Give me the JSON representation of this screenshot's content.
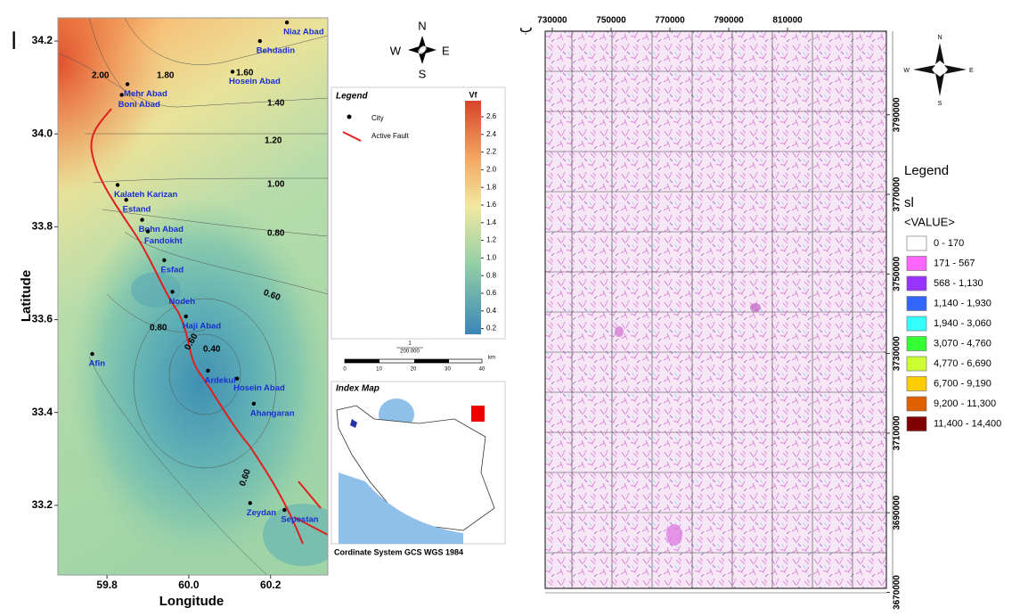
{
  "left_map": {
    "panel_label": "ا",
    "x_axis_label": "Longitude",
    "y_axis_label": "Latitude",
    "xlim": [
      59.68,
      60.34
    ],
    "ylim": [
      33.05,
      34.25
    ],
    "xticks": [
      59.8,
      {
        "value": 60.0,
        "label": "60.0"
      },
      60.2
    ],
    "yticks": [
      33.2,
      33.4,
      33.6,
      33.8,
      {
        "value": 34.0,
        "label": "34.0"
      },
      34.2
    ],
    "cities": [
      {
        "name": "Niaz Abad",
        "lon": 60.24,
        "lat": 34.24
      },
      {
        "name": "Behdadin",
        "lon": 60.174,
        "lat": 34.2
      },
      {
        "name": "Hosein Abad",
        "lon": 60.107,
        "lat": 34.134
      },
      {
        "name": "Mehr Abad",
        "lon": 59.85,
        "lat": 34.107
      },
      {
        "name": "Boni Abad",
        "lon": 59.836,
        "lat": 34.084
      },
      {
        "name": "Kalateh Karizan",
        "lon": 59.826,
        "lat": 33.89
      },
      {
        "name": "Estand",
        "lon": 59.847,
        "lat": 33.858
      },
      {
        "name": "Bohn Abad",
        "lon": 59.886,
        "lat": 33.815
      },
      {
        "name": "Fandokht",
        "lon": 59.9,
        "lat": 33.79
      },
      {
        "name": "Esfad",
        "lon": 59.94,
        "lat": 33.728
      },
      {
        "name": "Nodeh",
        "lon": 59.96,
        "lat": 33.66
      },
      {
        "name": "Haji Abad",
        "lon": 59.993,
        "lat": 33.607
      },
      {
        "name": "Afin",
        "lon": 59.764,
        "lat": 33.526
      },
      {
        "name": "Ardekul",
        "lon": 60.047,
        "lat": 33.49
      },
      {
        "name": "Hosein Abad",
        "lon": 60.118,
        "lat": 33.473
      },
      {
        "name": "Ahangaran",
        "lon": 60.159,
        "lat": 33.419
      },
      {
        "name": "Zeydan",
        "lon": 60.15,
        "lat": 33.205
      },
      {
        "name": "Sepestan",
        "lon": 60.234,
        "lat": 33.19
      }
    ],
    "contour_labels": [
      "2.00",
      "1.80",
      "1.60",
      "1.40",
      "1.20",
      "1.00",
      "0.80",
      "0.60",
      "0.80",
      "0.60",
      "0.40",
      "0.60"
    ],
    "north": {
      "n": "N",
      "s": "S",
      "e": "E",
      "w": "W"
    },
    "legend": {
      "title": "Legend",
      "city": "City",
      "fault": "Active Fault",
      "colorbar_title": "Vf",
      "colorbar_ticks": [
        "2.6",
        "2.4",
        "2.2",
        "2.0",
        "1.8",
        "1.6",
        "1.4",
        "1.2",
        "1.0",
        "0.8",
        "0.6",
        "0.4",
        "0.2"
      ]
    },
    "scale": {
      "ratio_top": "1",
      "ratio_bottom": "200.000",
      "ticks": [
        "0",
        "10",
        "20",
        "30",
        "40"
      ],
      "unit": "km"
    },
    "index_map_title": "Index Map",
    "coordinate_system": "Cordinate System GCS WGS 1984"
  },
  "right_map": {
    "panel_label": "ب",
    "xlim": [
      727600,
      843600
    ],
    "ylim": [
      3671000,
      3811000
    ],
    "xticks": [
      730000,
      750000,
      770000,
      790000,
      810000
    ],
    "yticks": [
      3790000,
      3770000,
      3750000,
      3730000,
      3710000,
      3690000,
      3670000
    ],
    "north": {
      "n": "N",
      "s": "S",
      "e": "E",
      "w": "W"
    },
    "legend": {
      "title": "Legend",
      "layer": "sl",
      "field": "<VALUE>",
      "classes": [
        {
          "label": "0 - 170",
          "color": "#ffffff"
        },
        {
          "label": "171 - 567",
          "color": "#ff66ff"
        },
        {
          "label": "568 - 1,130",
          "color": "#9933ff"
        },
        {
          "label": "1,140 - 1,930",
          "color": "#3366ff"
        },
        {
          "label": "1,940 - 3,060",
          "color": "#33ffff"
        },
        {
          "label": "3,070 - 4,760",
          "color": "#33ff33"
        },
        {
          "label": "4,770 - 6,690",
          "color": "#ccff33"
        },
        {
          "label": "6,700 - 9,190",
          "color": "#ffcc00"
        },
        {
          "label": "9,200 - 11,300",
          "color": "#e06000"
        },
        {
          "label": "11,400 - 14,400",
          "color": "#800000"
        }
      ]
    }
  }
}
